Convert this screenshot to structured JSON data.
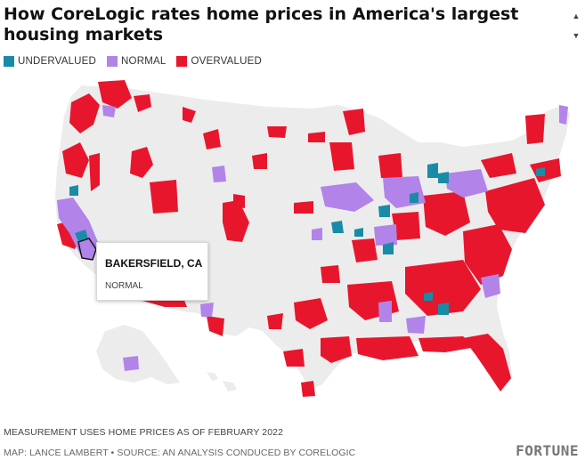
{
  "title": "How CoreLogic rates home prices in America's largest housing markets",
  "legend": [
    {
      "label": "UNDERVALUED",
      "color": "#1a8ba6"
    },
    {
      "label": "NORMAL",
      "color": "#b284ea"
    },
    {
      "label": "OVERVALUED",
      "color": "#e8162d"
    }
  ],
  "tooltip": {
    "name": "BAKERSFIELD, CA",
    "status": "NORMAL"
  },
  "note": "MEASUREMENT USES HOME PRICES AS OF FEBRUARY 2022",
  "credit": "MAP: LANCE LAMBERT • SOURCE: AN ANALYSIS CONDUCED BY CORELOGIC",
  "logo": "FORTUNE",
  "map_colors": {
    "land": "#ececec",
    "border": "#ffffff"
  }
}
